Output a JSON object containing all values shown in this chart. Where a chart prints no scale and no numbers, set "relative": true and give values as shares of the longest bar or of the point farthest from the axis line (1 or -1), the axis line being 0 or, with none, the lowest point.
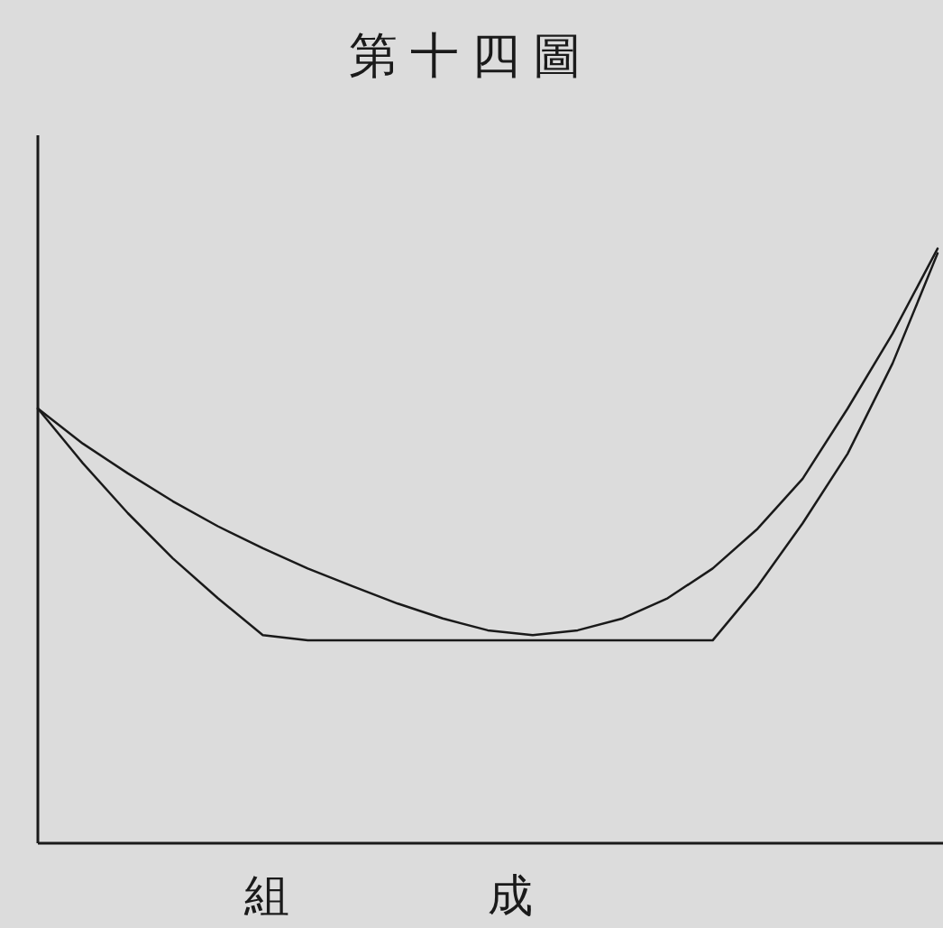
{
  "chart_data": {
    "type": "line",
    "title": "第十四圖",
    "xlabel": "組成",
    "relative": true,
    "categories": [
      null,
      null,
      null,
      null,
      null,
      null,
      null,
      null,
      null,
      null,
      null,
      null,
      null,
      null,
      null,
      null,
      null,
      null,
      null,
      null,
      null
    ],
    "series": [
      {
        "color": "#1a1a1a",
        "values": [
          0.731,
          0.672,
          0.622,
          0.575,
          0.533,
          0.496,
          0.462,
          0.432,
          0.403,
          0.378,
          0.358,
          0.35,
          0.358,
          0.378,
          0.412,
          0.462,
          0.529,
          0.613,
          0.731,
          0.857,
          1
        ]
      },
      {
        "color": "#1a1a1a",
        "values": [
          0.731,
          0.639,
          0.555,
          0.479,
          0.412,
          0.35,
          0.341,
          0.341,
          0.341,
          0.341,
          0.341,
          0.341,
          0.341,
          0.341,
          0.341,
          0.341,
          0.432,
          0.538,
          0.655,
          0.807,
          0.992
        ]
      }
    ],
    "marker": "none",
    "line_style": "solid"
  }
}
